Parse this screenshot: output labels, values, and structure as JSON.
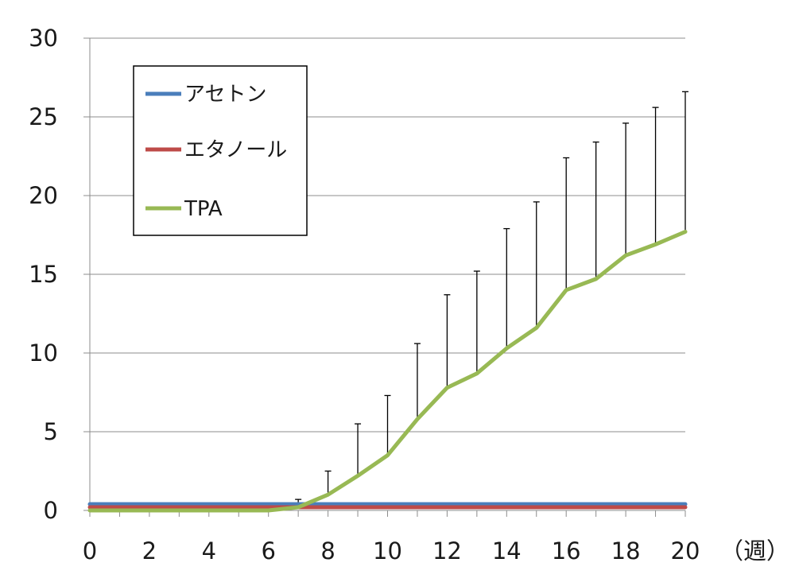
{
  "chart_data": {
    "type": "line",
    "xlabel": "",
    "x_unit": "（週）",
    "ylabel": "",
    "xlim": [
      0,
      20
    ],
    "ylim": [
      0,
      30
    ],
    "x_ticks": [
      0,
      2,
      4,
      6,
      8,
      10,
      12,
      14,
      16,
      18,
      20
    ],
    "y_ticks": [
      0,
      5,
      10,
      15,
      20,
      25,
      30
    ],
    "grid": "horizontal",
    "legend_position": "top-left",
    "x": [
      0,
      1,
      2,
      3,
      4,
      5,
      6,
      7,
      8,
      9,
      10,
      11,
      12,
      13,
      14,
      15,
      16,
      17,
      18,
      19,
      20
    ],
    "series": [
      {
        "name": "アセトン",
        "color": "#4a7ebb",
        "values": [
          0.4,
          0.4,
          0.4,
          0.4,
          0.4,
          0.4,
          0.4,
          0.4,
          0.4,
          0.4,
          0.4,
          0.4,
          0.4,
          0.4,
          0.4,
          0.4,
          0.4,
          0.4,
          0.4,
          0.4,
          0.4
        ]
      },
      {
        "name": "エタノール",
        "color": "#be4b48",
        "values": [
          0.2,
          0.2,
          0.2,
          0.2,
          0.2,
          0.2,
          0.2,
          0.2,
          0.2,
          0.2,
          0.2,
          0.2,
          0.2,
          0.2,
          0.2,
          0.2,
          0.2,
          0.2,
          0.2,
          0.2,
          0.2
        ]
      },
      {
        "name": "TPA",
        "color": "#98b954",
        "values": [
          0,
          0,
          0,
          0,
          0,
          0,
          0,
          0.2,
          1.0,
          2.2,
          3.5,
          5.8,
          7.8,
          8.7,
          10.3,
          11.6,
          14.0,
          14.7,
          16.2,
          16.9,
          17.7
        ],
        "error_upper": [
          null,
          null,
          null,
          null,
          null,
          null,
          null,
          0.7,
          2.5,
          5.5,
          7.3,
          10.6,
          13.7,
          15.2,
          17.9,
          19.6,
          22.4,
          23.4,
          24.6,
          25.6,
          26.6
        ]
      }
    ]
  }
}
